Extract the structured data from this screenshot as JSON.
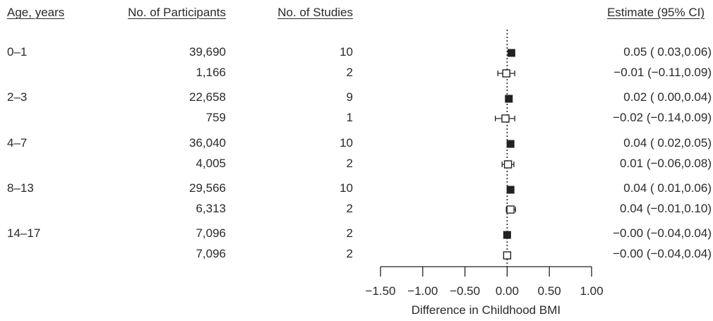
{
  "headers": {
    "age": "Age, years",
    "participants": "No. of Participants",
    "studies": "No. of Studies",
    "estimate": "Estimate (95% CI)"
  },
  "rows": [
    {
      "age": "0–1",
      "participants": "39,690",
      "studies": "10",
      "estimate_text": "0.05 ( 0.03,0.06)",
      "filled": true
    },
    {
      "age": "",
      "participants": "1,166",
      "studies": "2",
      "estimate_text": "−0.01 (−0.11,0.09)",
      "filled": false
    },
    {
      "age": "2–3",
      "participants": "22,658",
      "studies": "9",
      "estimate_text": "0.02 ( 0.00,0.04)",
      "filled": true
    },
    {
      "age": "",
      "participants": "759",
      "studies": "1",
      "estimate_text": "−0.02 (−0.14,0.09)",
      "filled": false
    },
    {
      "age": "4–7",
      "participants": "36,040",
      "studies": "10",
      "estimate_text": "0.04 ( 0.02,0.05)",
      "filled": true
    },
    {
      "age": "",
      "participants": "4,005",
      "studies": "2",
      "estimate_text": "0.01 (−0.06,0.08)",
      "filled": false
    },
    {
      "age": "8–13",
      "participants": "29,566",
      "studies": "10",
      "estimate_text": "0.04 ( 0.01,0.06)",
      "filled": true
    },
    {
      "age": "",
      "participants": "6,313",
      "studies": "2",
      "estimate_text": "0.04 (−0.01,0.10)",
      "filled": false
    },
    {
      "age": "14–17",
      "participants": "7,096",
      "studies": "2",
      "estimate_text": "−0.00 (−0.04,0.04)",
      "filled": true
    },
    {
      "age": "",
      "participants": "7,096",
      "studies": "2",
      "estimate_text": "−0.00 (−0.04,0.04)",
      "filled": false
    }
  ],
  "chart_data": {
    "type": "scatter",
    "xlabel": "Difference in Childhood BMI",
    "xlim": [
      -1.5,
      1.0
    ],
    "xticks": [
      -1.5,
      -1.0,
      -0.5,
      0.0,
      0.5,
      1.0
    ],
    "xtick_labels": [
      "−1.50",
      "−1.00",
      "−0.50",
      "0.00",
      "0.50",
      "1.00"
    ],
    "reference_line": 0.0,
    "estimates": [
      0.05,
      -0.01,
      0.02,
      -0.02,
      0.04,
      0.01,
      0.04,
      0.04,
      -0.0,
      -0.0
    ],
    "lower": [
      0.03,
      -0.11,
      0.0,
      -0.14,
      0.02,
      -0.06,
      0.01,
      -0.01,
      -0.04,
      -0.04
    ],
    "upper": [
      0.06,
      0.09,
      0.04,
      0.09,
      0.05,
      0.08,
      0.06,
      0.1,
      0.04,
      0.04
    ],
    "marker_filled": [
      true,
      false,
      true,
      false,
      true,
      false,
      true,
      false,
      true,
      false
    ],
    "colors": {
      "ink": "#222222",
      "text": "#2a2a2a"
    }
  }
}
